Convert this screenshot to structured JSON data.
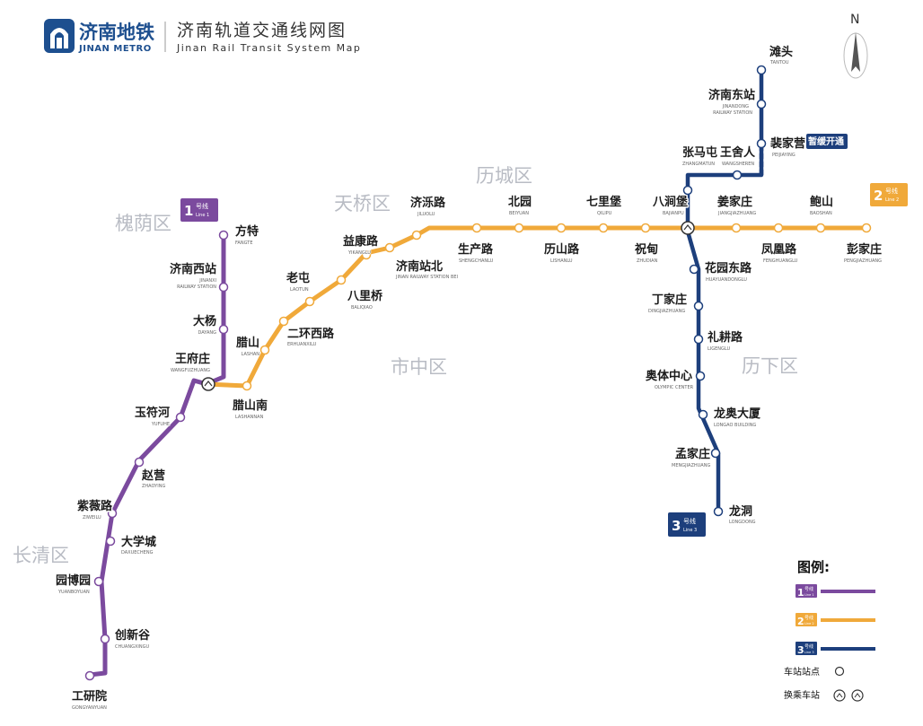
{
  "header": {
    "brand_cn": "济南地铁",
    "brand_en": "JINAN METRO",
    "title_cn": "济南轨道交通线网图",
    "title_en": "Jinan Rail Transit System Map",
    "north": "N",
    "logo": "jinan-metro-logo"
  },
  "districts": [
    {
      "name": "槐荫区"
    },
    {
      "name": "天桥区"
    },
    {
      "name": "历城区"
    },
    {
      "name": "市中区"
    },
    {
      "name": "历下区"
    },
    {
      "name": "长清区"
    }
  ],
  "colors": {
    "line1": "#7b4a9e",
    "line2": "#f0a93a",
    "line3": "#1d3f7c"
  },
  "lines": [
    {
      "id": "line1",
      "badge_num": "1",
      "badge_txt": "号线",
      "badge_en": "Line 1"
    },
    {
      "id": "line2",
      "badge_num": "2",
      "badge_txt": "号线",
      "badge_en": "Line 2"
    },
    {
      "id": "line3",
      "badge_num": "3",
      "badge_txt": "号线",
      "badge_en": "Line 3"
    }
  ],
  "note": "暂缓开通",
  "stations": [
    {
      "cn": "方特",
      "en": "FANGTE"
    },
    {
      "cn": "济南西站",
      "en": "JINANXI",
      "en2": "RAILWAY STATION"
    },
    {
      "cn": "大杨",
      "en": "DAYANG"
    },
    {
      "cn": "王府庄",
      "en": "WANGFUZHUANG"
    },
    {
      "cn": "玉符河",
      "en": "YUFUHE"
    },
    {
      "cn": "赵营",
      "en": "ZHAOYING"
    },
    {
      "cn": "紫薇路",
      "en": "ZIWEILU"
    },
    {
      "cn": "大学城",
      "en": "DAXUECHENG"
    },
    {
      "cn": "园博园",
      "en": "YUANBOYUAN"
    },
    {
      "cn": "创新谷",
      "en": "CHUANGXINGU"
    },
    {
      "cn": "工研院",
      "en": "GONGYANYUAN"
    },
    {
      "cn": "腊山南",
      "en": "LASHANNAN"
    },
    {
      "cn": "腊山",
      "en": "LASHAN"
    },
    {
      "cn": "二环西路",
      "en": "ERHUANXILU"
    },
    {
      "cn": "老屯",
      "en": "LAOTUN"
    },
    {
      "cn": "八里桥",
      "en": "BALIQIAO"
    },
    {
      "cn": "益康路",
      "en": "YIKANGLU"
    },
    {
      "cn": "济南站北",
      "en": "JINAN RAILWAY STATION BEI"
    },
    {
      "cn": "济泺路",
      "en": "JILUOLU"
    },
    {
      "cn": "生产路",
      "en": "SHENGCHANLU"
    },
    {
      "cn": "北园",
      "en": "BEIYUAN"
    },
    {
      "cn": "历山路",
      "en": "LISHANLU"
    },
    {
      "cn": "七里堡",
      "en": "QILIPU"
    },
    {
      "cn": "祝甸",
      "en": "ZHUDIAN"
    },
    {
      "cn": "八涧堡",
      "en": "BAJIANPU"
    },
    {
      "cn": "姜家庄",
      "en": "JIANGJIAZHUANG"
    },
    {
      "cn": "凤凰路",
      "en": "FENGHUANGLU"
    },
    {
      "cn": "鲍山",
      "en": "BAOSHAN"
    },
    {
      "cn": "彭家庄",
      "en": "PENGJIAZHUANG"
    },
    {
      "cn": "滩头",
      "en": "TANTOU"
    },
    {
      "cn": "济南东站",
      "en": "JINANDONG",
      "en2": "RAILWAY STATION"
    },
    {
      "cn": "裴家营",
      "en": "PEIJIAYING"
    },
    {
      "cn": "王舍人",
      "en": "WANGSHEREN"
    },
    {
      "cn": "张马屯",
      "en": "ZHANGMATUN"
    },
    {
      "cn": "花园东路",
      "en": "HUAYUANDONGLU"
    },
    {
      "cn": "丁家庄",
      "en": "DINGJIAZHUANG"
    },
    {
      "cn": "礼耕路",
      "en": "LIGENGLU"
    },
    {
      "cn": "奥体中心",
      "en": "OLYMPIC CENTER"
    },
    {
      "cn": "龙奥大厦",
      "en": "LONGAO BUILDING"
    },
    {
      "cn": "孟家庄",
      "en": "MENGJIAZHUANG"
    },
    {
      "cn": "龙洞",
      "en": "LONGDONG"
    }
  ],
  "legend": {
    "title": "图例:",
    "station": "车站站点",
    "transfer": "换乘车站"
  }
}
